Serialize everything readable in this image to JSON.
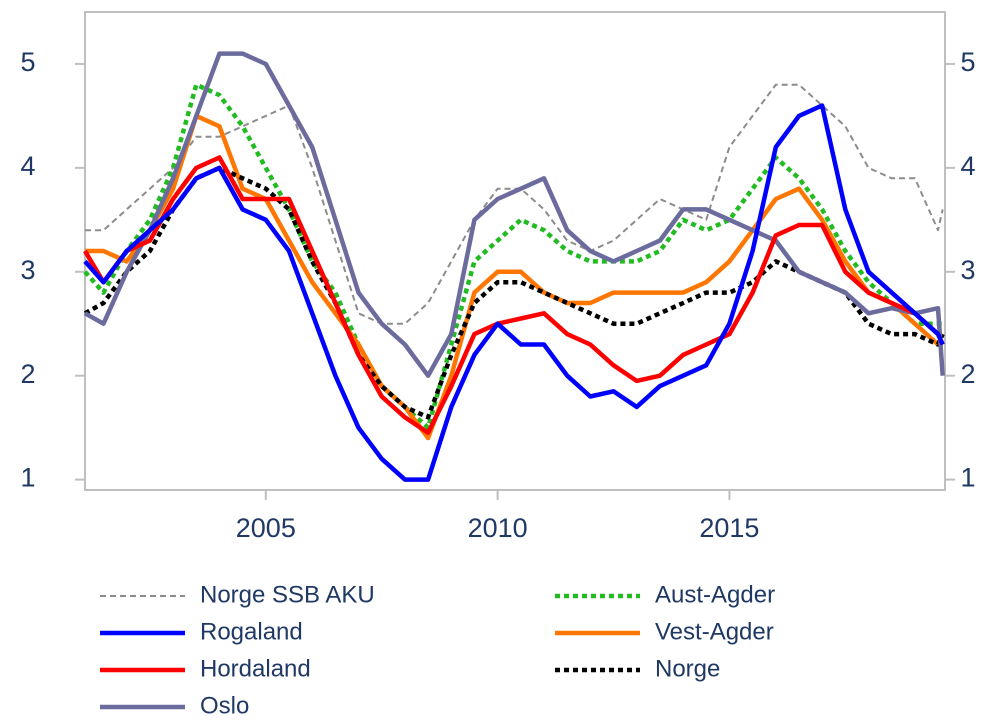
{
  "chart_data": {
    "type": "line",
    "x": [
      2001.1,
      2001.5,
      2002,
      2002.5,
      2003,
      2003.5,
      2004,
      2004.5,
      2005,
      2005.5,
      2006,
      2006.5,
      2007,
      2007.5,
      2008,
      2008.5,
      2009,
      2009.5,
      2010,
      2010.5,
      2011,
      2011.5,
      2012,
      2012.5,
      2013,
      2013.5,
      2014,
      2014.5,
      2015,
      2015.5,
      2016,
      2016.5,
      2017,
      2017.5,
      2018,
      2018.5,
      2019,
      2019.5,
      2019.6
    ],
    "xlim": [
      2001.1,
      2019.65
    ],
    "xticks": [
      2005,
      2010,
      2015
    ],
    "ylim": [
      0.9,
      5.5
    ],
    "yticks": [
      1,
      2,
      3,
      4,
      5
    ],
    "y2lim": [
      0.9,
      5.5
    ],
    "y2ticks": [
      1,
      2,
      3,
      4,
      5
    ],
    "series": [
      {
        "name": "Norge SSB AKU",
        "color": "#8c8c8c",
        "style": "dashed",
        "values": [
          3.4,
          3.4,
          3.6,
          3.8,
          4.0,
          4.3,
          4.3,
          4.4,
          4.5,
          4.6,
          4.0,
          3.3,
          2.6,
          2.5,
          2.5,
          2.7,
          3.1,
          3.5,
          3.8,
          3.8,
          3.6,
          3.3,
          3.2,
          3.3,
          3.5,
          3.7,
          3.6,
          3.5,
          4.2,
          4.5,
          4.8,
          4.8,
          4.6,
          4.4,
          4.0,
          3.9,
          3.9,
          3.4,
          3.6
        ]
      },
      {
        "name": "Rogaland",
        "color": "#0000ff",
        "style": "solid",
        "values": [
          3.1,
          2.9,
          3.2,
          3.4,
          3.6,
          3.9,
          4.0,
          3.6,
          3.5,
          3.2,
          2.6,
          2.0,
          1.5,
          1.2,
          1.0,
          1.0,
          1.7,
          2.2,
          2.5,
          2.3,
          2.3,
          2.0,
          1.8,
          1.85,
          1.7,
          1.9,
          2.0,
          2.1,
          2.5,
          3.2,
          4.2,
          4.5,
          4.6,
          3.6,
          3.0,
          2.8,
          2.6,
          2.4,
          2.3
        ]
      },
      {
        "name": "Hordaland",
        "color": "#ff0000",
        "style": "solid",
        "values": [
          3.2,
          2.9,
          3.2,
          3.3,
          3.7,
          4.0,
          4.1,
          3.7,
          3.7,
          3.7,
          3.2,
          2.7,
          2.2,
          1.8,
          1.6,
          1.45,
          1.9,
          2.4,
          2.5,
          2.55,
          2.6,
          2.4,
          2.3,
          2.1,
          1.95,
          2.0,
          2.2,
          2.3,
          2.4,
          2.8,
          3.35,
          3.45,
          3.45,
          3.0,
          2.8,
          2.7,
          2.6,
          2.4,
          2.3
        ]
      },
      {
        "name": "Oslo",
        "color": "#6b6b9e",
        "style": "solid",
        "values": [
          2.6,
          2.5,
          3.0,
          3.4,
          3.9,
          4.5,
          5.1,
          5.1,
          5.0,
          4.6,
          4.2,
          3.5,
          2.8,
          2.5,
          2.3,
          2.0,
          2.4,
          3.5,
          3.7,
          3.8,
          3.9,
          3.4,
          3.2,
          3.1,
          3.2,
          3.3,
          3.6,
          3.6,
          3.5,
          3.4,
          3.3,
          3.0,
          2.9,
          2.8,
          2.6,
          2.65,
          2.6,
          2.65,
          2.0
        ]
      },
      {
        "name": "Aust-Agder",
        "color": "#22bb22",
        "style": "dotted",
        "values": [
          3.0,
          2.8,
          3.2,
          3.5,
          4.0,
          4.8,
          4.7,
          4.4,
          4.0,
          3.6,
          3.1,
          2.8,
          2.3,
          1.9,
          1.7,
          1.5,
          2.3,
          3.1,
          3.3,
          3.5,
          3.4,
          3.2,
          3.1,
          3.1,
          3.1,
          3.2,
          3.5,
          3.4,
          3.5,
          3.8,
          4.1,
          3.9,
          3.6,
          3.2,
          2.9,
          2.7,
          2.5,
          2.5,
          2.5
        ]
      },
      {
        "name": "Vest-Agder",
        "color": "#ff7700",
        "style": "solid",
        "values": [
          3.2,
          3.2,
          3.1,
          3.4,
          3.8,
          4.5,
          4.4,
          3.8,
          3.7,
          3.3,
          2.9,
          2.6,
          2.3,
          1.9,
          1.7,
          1.4,
          2.0,
          2.8,
          3.0,
          3.0,
          2.8,
          2.7,
          2.7,
          2.8,
          2.8,
          2.8,
          2.8,
          2.9,
          3.1,
          3.4,
          3.7,
          3.8,
          3.5,
          3.1,
          2.8,
          2.7,
          2.5,
          2.3,
          2.3
        ]
      },
      {
        "name": "Norge",
        "color": "#000000",
        "style": "dotted",
        "values": [
          2.6,
          2.7,
          3.0,
          3.2,
          3.6,
          3.9,
          4.0,
          3.9,
          3.8,
          3.6,
          3.1,
          2.7,
          2.2,
          1.9,
          1.7,
          1.6,
          2.2,
          2.7,
          2.9,
          2.9,
          2.8,
          2.7,
          2.6,
          2.5,
          2.5,
          2.6,
          2.7,
          2.8,
          2.8,
          2.9,
          3.1,
          3.0,
          2.9,
          2.8,
          2.5,
          2.4,
          2.4,
          2.3,
          2.4
        ]
      }
    ]
  }
}
